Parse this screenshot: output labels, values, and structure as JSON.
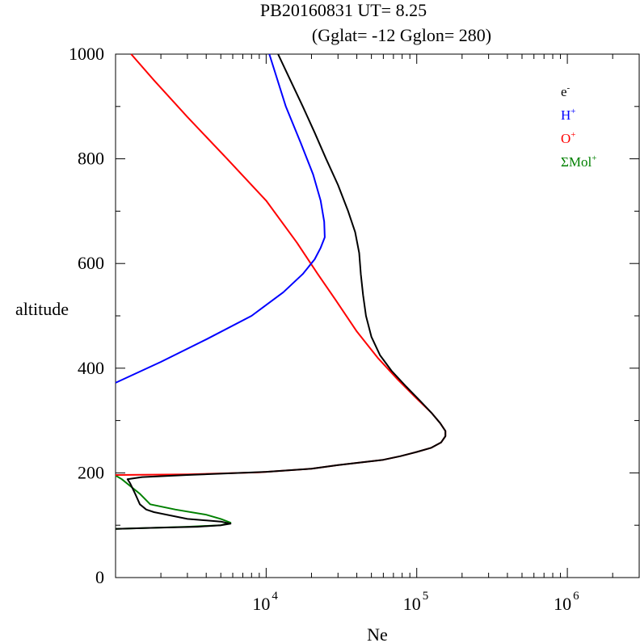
{
  "chart_data": {
    "type": "line",
    "title": "PB20160831   UT=  8.25",
    "subtitle": "(Gglat= -12   Gglon=  280)",
    "xlabel": "Ne",
    "ylabel": "altitude",
    "xscale": "log",
    "xlim": [
      1000,
      3000000
    ],
    "ylim": [
      0,
      1000
    ],
    "ytick_labels": [
      "0",
      "200",
      "400",
      "600",
      "800",
      "1000"
    ],
    "yticks": [
      0,
      200,
      400,
      600,
      800,
      1000
    ],
    "xticks": [
      {
        "base": "10",
        "exp": "4",
        "value": 10000
      },
      {
        "base": "10",
        "exp": "5",
        "value": 100000
      },
      {
        "base": "10",
        "exp": "6",
        "value": 1000000
      }
    ],
    "legend_position": "top-right",
    "series": [
      {
        "name": "e-",
        "label": "e",
        "sup": "-",
        "color": "#000000",
        "points": [
          [
            1000,
            93
          ],
          [
            1800,
            95
          ],
          [
            3500,
            97
          ],
          [
            5000,
            100
          ],
          [
            5800,
            103
          ],
          [
            5000,
            107
          ],
          [
            3000,
            112
          ],
          [
            1800,
            125
          ],
          [
            1600,
            130
          ],
          [
            1450,
            140
          ],
          [
            1350,
            160
          ],
          [
            1250,
            180
          ],
          [
            1200,
            188
          ],
          [
            1500,
            192
          ],
          [
            3000,
            196
          ],
          [
            10000,
            202
          ],
          [
            20000,
            208
          ],
          [
            30000,
            215
          ],
          [
            43000,
            220
          ],
          [
            60000,
            225
          ],
          [
            78000,
            232
          ],
          [
            100000,
            240
          ],
          [
            125000,
            248
          ],
          [
            145000,
            258
          ],
          [
            155000,
            270
          ],
          [
            155000,
            280
          ],
          [
            143000,
            295
          ],
          [
            125000,
            315
          ],
          [
            105000,
            338
          ],
          [
            85000,
            365
          ],
          [
            68000,
            395
          ],
          [
            57000,
            425
          ],
          [
            50000,
            460
          ],
          [
            46000,
            500
          ],
          [
            44000,
            540
          ],
          [
            42500,
            580
          ],
          [
            41500,
            620
          ],
          [
            39000,
            660
          ],
          [
            35000,
            700
          ],
          [
            30000,
            750
          ],
          [
            25000,
            800
          ],
          [
            21000,
            850
          ],
          [
            17500,
            900
          ],
          [
            14500,
            950
          ],
          [
            12000,
            1000
          ]
        ]
      },
      {
        "name": "H+",
        "label": "H",
        "sup": "+",
        "color": "#0000ff",
        "points": [
          [
            1000,
            372
          ],
          [
            2000,
            412
          ],
          [
            4000,
            455
          ],
          [
            8000,
            500
          ],
          [
            13000,
            545
          ],
          [
            17500,
            580
          ],
          [
            21000,
            608
          ],
          [
            23000,
            630
          ],
          [
            24500,
            650
          ],
          [
            24300,
            680
          ],
          [
            23000,
            720
          ],
          [
            20500,
            770
          ],
          [
            17000,
            830
          ],
          [
            13500,
            900
          ],
          [
            10500,
            1000
          ]
        ]
      },
      {
        "name": "O+",
        "label": "O",
        "sup": "+",
        "color": "#ff0000",
        "points": [
          [
            1000,
            196
          ],
          [
            3000,
            197
          ],
          [
            9000,
            201
          ],
          [
            20000,
            208
          ],
          [
            30000,
            215
          ],
          [
            43000,
            220
          ],
          [
            60000,
            225
          ],
          [
            78000,
            232
          ],
          [
            100000,
            240
          ],
          [
            125000,
            248
          ],
          [
            145000,
            258
          ],
          [
            155000,
            270
          ],
          [
            155000,
            280
          ],
          [
            143000,
            295
          ],
          [
            125000,
            315
          ],
          [
            100000,
            342
          ],
          [
            75000,
            378
          ],
          [
            55000,
            420
          ],
          [
            40000,
            470
          ],
          [
            29000,
            530
          ],
          [
            22000,
            580
          ],
          [
            16000,
            640
          ],
          [
            10000,
            720
          ],
          [
            5500,
            800
          ],
          [
            3000,
            880
          ],
          [
            1800,
            950
          ],
          [
            1270,
            1000
          ]
        ]
      },
      {
        "name": "ΣMol+",
        "label": "ΣMol",
        "sup": "+",
        "color": "#008000",
        "points": [
          [
            1000,
            195
          ],
          [
            1100,
            188
          ],
          [
            1250,
            175
          ],
          [
            1450,
            160
          ],
          [
            1700,
            140
          ],
          [
            2500,
            130
          ],
          [
            4000,
            120
          ],
          [
            5000,
            112
          ],
          [
            5800,
            105
          ],
          [
            5000,
            100
          ],
          [
            3000,
            97
          ],
          [
            1800,
            95
          ],
          [
            1000,
            93
          ]
        ]
      }
    ]
  }
}
